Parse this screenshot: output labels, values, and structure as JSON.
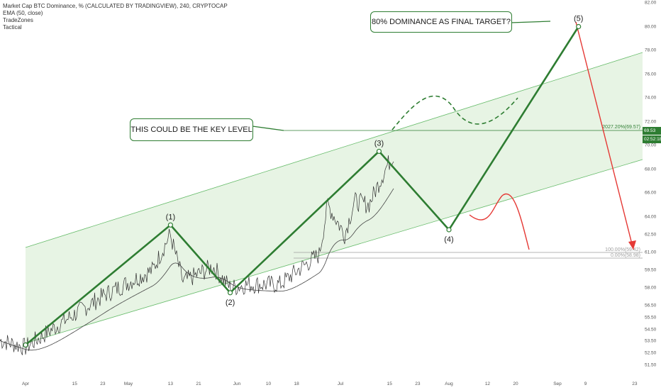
{
  "legend": {
    "title": "Market Cap BTC Dominance, % (CALCULATED BY TRADINGVIEW), 240, CRYPTOCAP",
    "ema": "EMA (50, close)",
    "ind1": "TradeZones",
    "ind2": "Tactical"
  },
  "annotations": {
    "key_level": "THIS COULD BE THE KEY LEVEL",
    "final_target": "80% DOMINANCE AS FINAL TARGET?"
  },
  "price_tags": {
    "last_price": "69.53",
    "countdown": "02:52:18",
    "last_price_color": "#2e7d32",
    "countdown_color": "#2e7d32"
  },
  "colors": {
    "wave": "#2e7d32",
    "price": "#333333",
    "ema": "#444444",
    "channel_fill": "#e3f2df",
    "channel_line": "#66bb6a",
    "bear": "#e53935"
  },
  "chart_data": {
    "type": "line",
    "y_axis_position": "right",
    "ylim": [
      50.6,
      82.4
    ],
    "y_ticks": [
      "82.00",
      "80.00",
      "78.00",
      "76.00",
      "74.00",
      "72.00",
      "70.00",
      "68.00",
      "66.00",
      "64.00",
      "62.50",
      "61.00",
      "59.50",
      "58.00",
      "56.50",
      "55.50",
      "54.50",
      "53.50",
      "52.50",
      "51.50"
    ],
    "y_tick_values": [
      82,
      80,
      78,
      76,
      74,
      72,
      70,
      68,
      66,
      64,
      62.5,
      61,
      59.5,
      58,
      56.5,
      55.5,
      54.5,
      53.5,
      52.5,
      51.5
    ],
    "x_ticks": [
      "Apr",
      "15",
      "23",
      "May",
      "13",
      "21",
      "Jun",
      "10",
      "18",
      "Jul",
      "15",
      "23",
      "Aug",
      "12",
      "20",
      "Sep",
      "9",
      "23"
    ],
    "elliott_waves": [
      {
        "label": "",
        "date": "Apr 1",
        "value": 53.2
      },
      {
        "label": "(1)",
        "date": "May 13",
        "value": 63.3
      },
      {
        "label": "(2)",
        "date": "May 30",
        "value": 57.6
      },
      {
        "label": "(3)",
        "date": "Jul 12",
        "value": 69.5
      },
      {
        "label": "(4)",
        "date": "Aug 1",
        "value": 62.9
      },
      {
        "label": "(5)",
        "date": "Sep 7",
        "value": 80.0
      }
    ],
    "key_level": {
      "value": 69.57,
      "label": "2027.20%(69.57)"
    },
    "fib_levels": [
      {
        "label": "100.00%(59.42)",
        "value": 59.42
      },
      {
        "label": "0.00%(58.98)",
        "value": 58.98
      }
    ],
    "channel": {
      "start": {
        "date": "Apr 1",
        "lower": 52.7,
        "upper": 60.0
      },
      "end": {
        "date": "Sep 23",
        "lower": 67.4,
        "upper": 77.2
      }
    },
    "alt_path_dashed": [
      {
        "date": "Jul 15",
        "value": 69.8
      },
      {
        "date": "Jul 24",
        "value": 72.5
      },
      {
        "date": "Aug 3",
        "value": 69.8
      },
      {
        "date": "Aug 20",
        "value": 72.5
      }
    ],
    "bear_scenario_curve": [
      {
        "date": "Aug 3",
        "value": 62.4
      },
      {
        "date": "Aug 12",
        "value": 64.0
      },
      {
        "date": "Aug 25",
        "value": 59.8
      }
    ],
    "bear_scenario_arrow": [
      {
        "date": "Sep 9",
        "value": 80.0
      },
      {
        "date": "Sep 16",
        "value": 59.8
      }
    ]
  }
}
